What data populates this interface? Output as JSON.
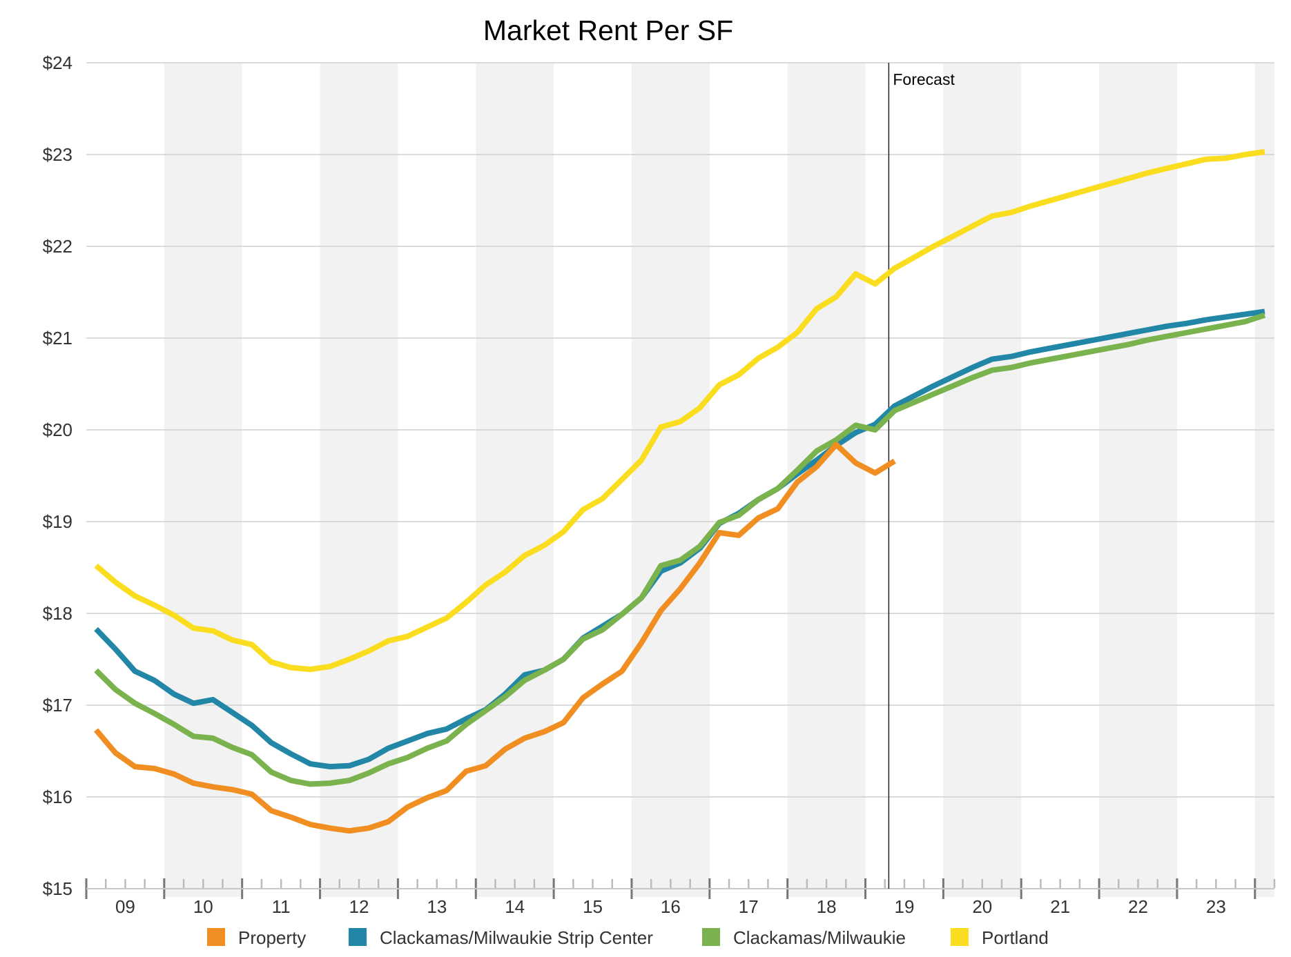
{
  "chart_data": {
    "type": "line",
    "title": "Market Rent Per SF",
    "xlabel": "",
    "ylabel": "",
    "x_start": "2009 Q1",
    "x_frequency": "quarterly",
    "x_tick_labels": [
      "09",
      "10",
      "11",
      "12",
      "13",
      "14",
      "15",
      "16",
      "17",
      "18",
      "19",
      "20",
      "21",
      "22",
      "23"
    ],
    "y_tick_labels": [
      "$15",
      "$16",
      "$17",
      "$18",
      "$19",
      "$20",
      "$21",
      "$22",
      "$23",
      "$24"
    ],
    "ylim": [
      15,
      24
    ],
    "xlim": [
      2009,
      2024.25
    ],
    "grid": "horizontal",
    "alternating_year_bands": true,
    "annotation": {
      "label": "Forecast",
      "x": 2019.3
    },
    "legend_position": "bottom",
    "series": [
      {
        "name": "Property",
        "color": "#F18E21",
        "values": [
          16.73,
          16.48,
          16.33,
          16.31,
          16.25,
          16.15,
          16.11,
          16.08,
          16.03,
          15.85,
          15.78,
          15.7,
          15.66,
          15.63,
          15.66,
          15.73,
          15.89,
          15.99,
          16.07,
          16.28,
          16.34,
          16.52,
          16.64,
          16.71,
          16.81,
          17.08,
          17.23,
          17.37,
          17.68,
          18.03,
          18.27,
          18.55,
          18.88,
          18.85,
          19.04,
          19.14,
          19.43,
          19.6,
          19.84,
          19.64,
          19.53,
          19.66
        ]
      },
      {
        "name": "Clackamas/Milwaukie Strip Center",
        "color": "#2287A6",
        "values": [
          17.83,
          17.61,
          17.37,
          17.27,
          17.12,
          17.02,
          17.06,
          16.92,
          16.78,
          16.59,
          16.47,
          16.36,
          16.33,
          16.34,
          16.41,
          16.53,
          16.61,
          16.69,
          16.74,
          16.85,
          16.95,
          17.12,
          17.33,
          17.38,
          17.5,
          17.73,
          17.86,
          17.99,
          18.17,
          18.46,
          18.55,
          18.71,
          18.98,
          19.09,
          19.24,
          19.36,
          19.52,
          19.67,
          19.83,
          19.97,
          20.06,
          20.26,
          20.37,
          20.48,
          20.58,
          20.68,
          20.77,
          20.8,
          20.85,
          20.89,
          20.93,
          20.97,
          21.01,
          21.05,
          21.09,
          21.13,
          21.16,
          21.2,
          21.23,
          21.26,
          21.29
        ]
      },
      {
        "name": "Clackamas/Milwaukie",
        "color": "#7AB24E",
        "values": [
          17.38,
          17.17,
          17.02,
          16.91,
          16.79,
          16.66,
          16.64,
          16.54,
          16.46,
          16.27,
          16.18,
          16.14,
          16.15,
          16.18,
          16.26,
          16.36,
          16.43,
          16.53,
          16.61,
          16.79,
          16.94,
          17.09,
          17.27,
          17.38,
          17.5,
          17.72,
          17.82,
          17.99,
          18.17,
          18.52,
          18.58,
          18.73,
          18.99,
          19.07,
          19.24,
          19.36,
          19.56,
          19.77,
          19.89,
          20.05,
          20.0,
          20.21,
          20.3,
          20.39,
          20.48,
          20.57,
          20.65,
          20.68,
          20.73,
          20.77,
          20.81,
          20.85,
          20.89,
          20.93,
          20.98,
          21.02,
          21.06,
          21.1,
          21.14,
          21.18,
          21.25
        ]
      },
      {
        "name": "Portland",
        "color": "#FBDD1F",
        "values": [
          18.52,
          18.34,
          18.19,
          18.09,
          17.98,
          17.84,
          17.81,
          17.71,
          17.66,
          17.47,
          17.41,
          17.39,
          17.42,
          17.5,
          17.59,
          17.7,
          17.75,
          17.85,
          17.95,
          18.12,
          18.31,
          18.45,
          18.63,
          18.74,
          18.89,
          19.13,
          19.25,
          19.46,
          19.67,
          20.03,
          20.09,
          20.24,
          20.49,
          20.6,
          20.78,
          20.9,
          21.06,
          21.32,
          21.45,
          21.7,
          21.59,
          21.76,
          21.88,
          22.0,
          22.11,
          22.22,
          22.33,
          22.37,
          22.44,
          22.5,
          22.56,
          22.62,
          22.68,
          22.74,
          22.8,
          22.85,
          22.9,
          22.95,
          22.96,
          23.0,
          23.03
        ]
      }
    ]
  }
}
